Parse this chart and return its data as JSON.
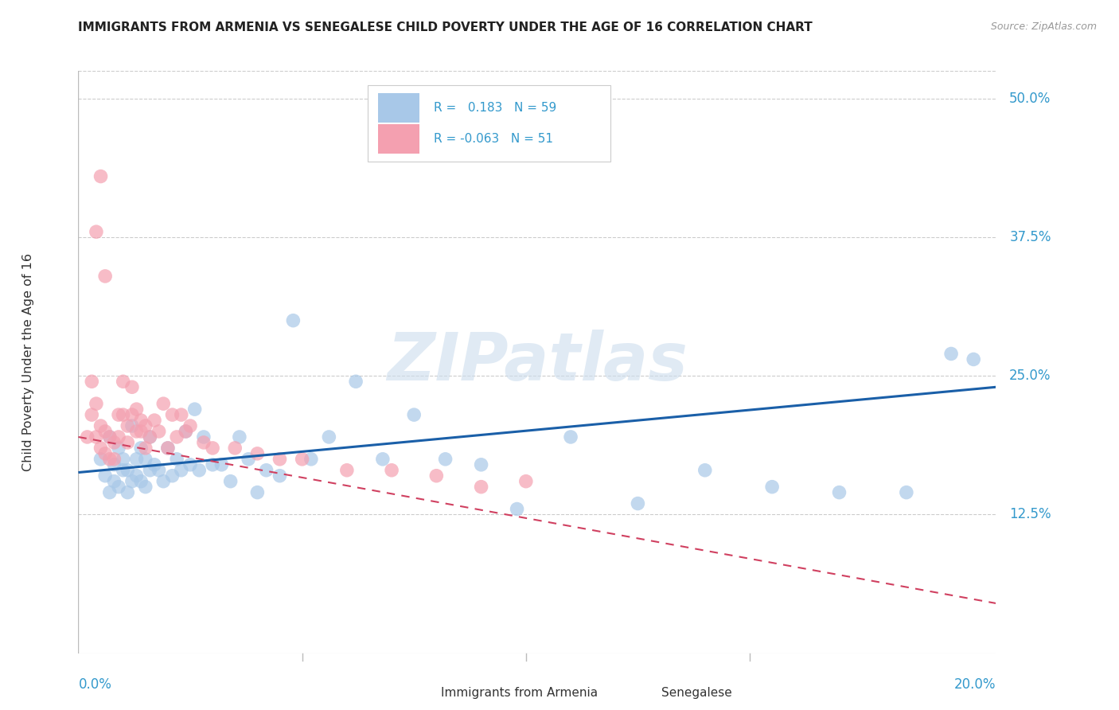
{
  "title": "IMMIGRANTS FROM ARMENIA VS SENEGALESE CHILD POVERTY UNDER THE AGE OF 16 CORRELATION CHART",
  "source": "Source: ZipAtlas.com",
  "ylabel": "Child Poverty Under the Age of 16",
  "legend1_label": "Immigrants from Armenia",
  "legend2_label": "Senegalese",
  "r_blue": 0.183,
  "n_blue": 59,
  "r_pink": -0.063,
  "n_pink": 51,
  "blue_color": "#a8c8e8",
  "pink_color": "#f4a0b0",
  "blue_line_color": "#1a5fa8",
  "pink_line_color": "#d04060",
  "watermark": "ZIPatlas",
  "ytick_vals": [
    0.125,
    0.25,
    0.375,
    0.5
  ],
  "ytick_labels": [
    "12.5%",
    "25.0%",
    "37.5%",
    "50.0%"
  ],
  "ylim": [
    0.0,
    0.525
  ],
  "xlim": [
    0.0,
    0.205
  ],
  "blue_line_x0": 0.0,
  "blue_line_y0": 0.163,
  "blue_line_x1": 0.205,
  "blue_line_y1": 0.24,
  "pink_line_x0": 0.0,
  "pink_line_y0": 0.195,
  "pink_line_x1": 0.205,
  "pink_line_y1": 0.045,
  "blue_scatter_x": [
    0.005,
    0.006,
    0.007,
    0.007,
    0.008,
    0.008,
    0.009,
    0.009,
    0.01,
    0.01,
    0.011,
    0.011,
    0.012,
    0.012,
    0.013,
    0.013,
    0.014,
    0.014,
    0.015,
    0.015,
    0.016,
    0.016,
    0.017,
    0.018,
    0.019,
    0.02,
    0.021,
    0.022,
    0.023,
    0.024,
    0.025,
    0.026,
    0.027,
    0.028,
    0.03,
    0.032,
    0.034,
    0.036,
    0.038,
    0.04,
    0.042,
    0.045,
    0.048,
    0.052,
    0.056,
    0.062,
    0.068,
    0.075,
    0.082,
    0.09,
    0.098,
    0.11,
    0.125,
    0.14,
    0.155,
    0.17,
    0.185,
    0.195,
    0.2
  ],
  "blue_scatter_y": [
    0.175,
    0.16,
    0.145,
    0.195,
    0.155,
    0.17,
    0.15,
    0.185,
    0.165,
    0.175,
    0.145,
    0.165,
    0.155,
    0.205,
    0.16,
    0.175,
    0.155,
    0.185,
    0.15,
    0.175,
    0.165,
    0.195,
    0.17,
    0.165,
    0.155,
    0.185,
    0.16,
    0.175,
    0.165,
    0.2,
    0.17,
    0.22,
    0.165,
    0.195,
    0.17,
    0.17,
    0.155,
    0.195,
    0.175,
    0.145,
    0.165,
    0.16,
    0.3,
    0.175,
    0.195,
    0.245,
    0.175,
    0.215,
    0.175,
    0.17,
    0.13,
    0.195,
    0.135,
    0.165,
    0.15,
    0.145,
    0.145,
    0.27,
    0.265
  ],
  "pink_scatter_x": [
    0.002,
    0.003,
    0.003,
    0.004,
    0.004,
    0.005,
    0.005,
    0.006,
    0.006,
    0.007,
    0.007,
    0.008,
    0.008,
    0.009,
    0.009,
    0.01,
    0.01,
    0.011,
    0.011,
    0.012,
    0.012,
    0.013,
    0.013,
    0.014,
    0.014,
    0.015,
    0.015,
    0.016,
    0.017,
    0.018,
    0.019,
    0.02,
    0.021,
    0.022,
    0.023,
    0.024,
    0.025,
    0.028,
    0.03,
    0.035,
    0.04,
    0.045,
    0.05,
    0.06,
    0.07,
    0.08,
    0.09,
    0.1,
    0.004,
    0.005,
    0.006
  ],
  "pink_scatter_y": [
    0.195,
    0.245,
    0.215,
    0.195,
    0.225,
    0.185,
    0.205,
    0.18,
    0.2,
    0.175,
    0.195,
    0.175,
    0.19,
    0.215,
    0.195,
    0.215,
    0.245,
    0.19,
    0.205,
    0.215,
    0.24,
    0.2,
    0.22,
    0.21,
    0.2,
    0.185,
    0.205,
    0.195,
    0.21,
    0.2,
    0.225,
    0.185,
    0.215,
    0.195,
    0.215,
    0.2,
    0.205,
    0.19,
    0.185,
    0.185,
    0.18,
    0.175,
    0.175,
    0.165,
    0.165,
    0.16,
    0.15,
    0.155,
    0.38,
    0.43,
    0.34
  ]
}
